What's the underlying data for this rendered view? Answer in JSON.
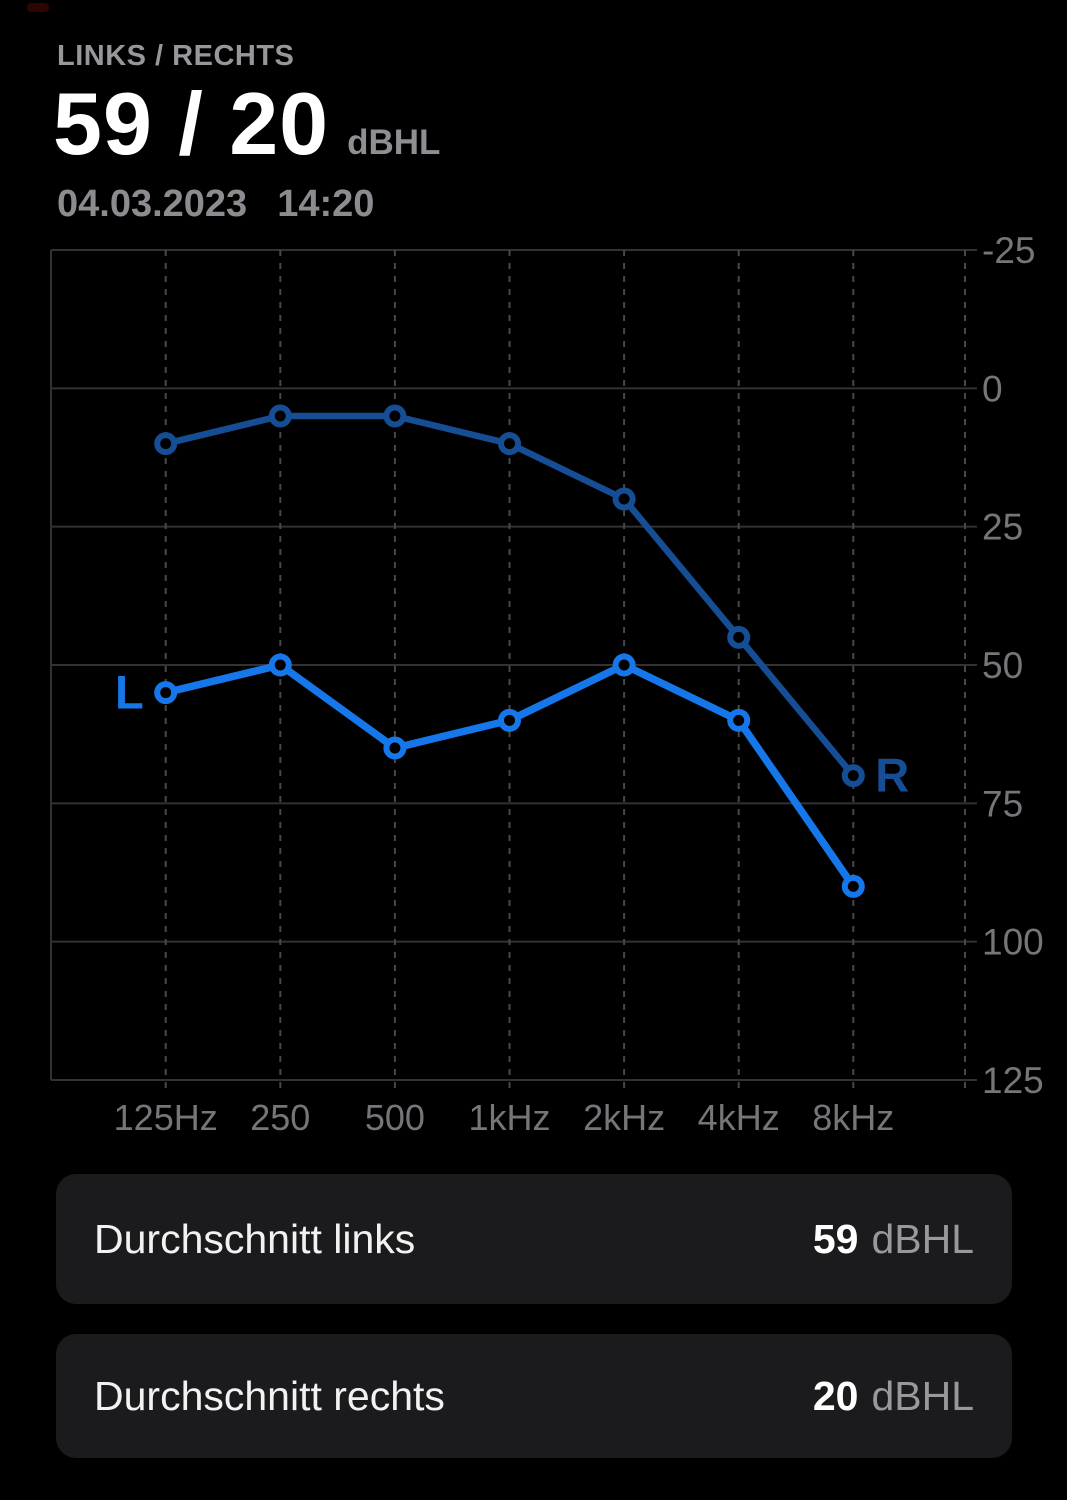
{
  "header": {
    "title": "LINKS / RECHTS",
    "value": "59 / 20",
    "unit": "dBHL",
    "date": "04.03.2023",
    "time": "14:20"
  },
  "chart_data": {
    "type": "line",
    "categories": [
      "125Hz",
      "250",
      "500",
      "1kHz",
      "2kHz",
      "4kHz",
      "8kHz"
    ],
    "y_ticks": [
      -25,
      0,
      25,
      50,
      75,
      100,
      125
    ],
    "ylim": [
      -25,
      125
    ],
    "y_unit": "dBHL",
    "grid": {
      "horizontal": "solid",
      "vertical": "dashed"
    },
    "legend_position": "inline-endpoint-labels",
    "series": [
      {
        "name": "rechts",
        "label": "R",
        "values": [
          10,
          5,
          5,
          10,
          20,
          45,
          70
        ],
        "color": "#164E96",
        "label_side": "right"
      },
      {
        "name": "links",
        "label": "L",
        "values": [
          55,
          50,
          65,
          60,
          50,
          60,
          90
        ],
        "color": "#1577EA",
        "label_side": "left"
      }
    ]
  },
  "summary_cards": [
    {
      "label": "Durchschnitt links",
      "value": "59",
      "unit": "dBHL"
    },
    {
      "label": "Durchschnitt rechts",
      "value": "20",
      "unit": "dBHL"
    }
  ],
  "colors": {
    "background": "#000000",
    "card_background": "#1b1b1d",
    "primary_text": "#ffffff",
    "secondary_text": "#8e8e93",
    "axis_text": "#76767a",
    "grid_solid": "#323235",
    "grid_dashed": "#48484b",
    "left_curve": "#1577EA",
    "right_curve": "#164E96"
  }
}
